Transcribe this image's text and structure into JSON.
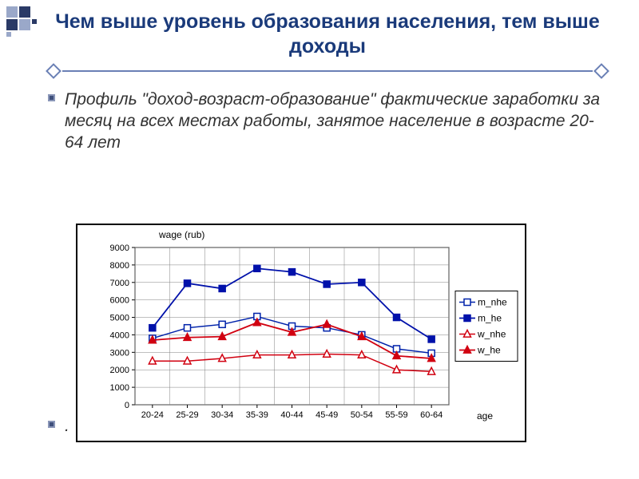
{
  "title": "Чем выше уровень образования населения, тем выше доходы",
  "bullet_text_lead": "Профиль \"доход-возраст-образование\"",
  "bullet_text_rest": " фактические заработки за месяц на всех местах работы, занятое население в возрасте 20-64 лет",
  "bullet_lone": ".",
  "chart": {
    "type": "line",
    "y_axis_title": "wage (rub)",
    "x_axis_title": "age",
    "categories": [
      "20-24",
      "25-29",
      "30-34",
      "35-39",
      "40-44",
      "45-49",
      "50-54",
      "55-59",
      "60-64"
    ],
    "ylim": [
      0,
      9000
    ],
    "ytick_step": 1000,
    "y_ticks": [
      0,
      1000,
      2000,
      3000,
      4000,
      5000,
      6000,
      7000,
      8000,
      9000
    ],
    "background_color": "#ffffff",
    "grid_color": "#808080",
    "axis_color": "#000000",
    "axis_title_fontsize": 12,
    "tick_fontsize": 11,
    "plot_border_width": 1,
    "series": [
      {
        "name": "m_nhe",
        "color": "#0022aa",
        "fill": "#ffffff",
        "marker": "square",
        "marker_size": 8,
        "line_width": 1.5,
        "values": [
          3800,
          4400,
          4600,
          5050,
          4500,
          4400,
          4000,
          3200,
          2950
        ]
      },
      {
        "name": "m_he",
        "color": "#0011aa",
        "fill": "#0011aa",
        "marker": "square",
        "marker_size": 8,
        "line_width": 1.8,
        "values": [
          4400,
          6950,
          6650,
          7800,
          7600,
          6900,
          7000,
          5000,
          3750
        ]
      },
      {
        "name": "w_nhe",
        "color": "#d10010",
        "fill": "#ffffff",
        "marker": "triangle",
        "marker_size": 9,
        "line_width": 1.5,
        "values": [
          2500,
          2500,
          2650,
          2850,
          2850,
          2900,
          2850,
          2000,
          1900
        ]
      },
      {
        "name": "w_he",
        "color": "#d10010",
        "fill": "#d10010",
        "marker": "triangle",
        "marker_size": 9,
        "line_width": 1.8,
        "values": [
          3700,
          3850,
          3900,
          4700,
          4150,
          4600,
          3900,
          2800,
          2650
        ]
      }
    ],
    "legend": {
      "position": "right",
      "border_color": "#000000",
      "bg": "#ffffff",
      "fontsize": 12
    }
  }
}
